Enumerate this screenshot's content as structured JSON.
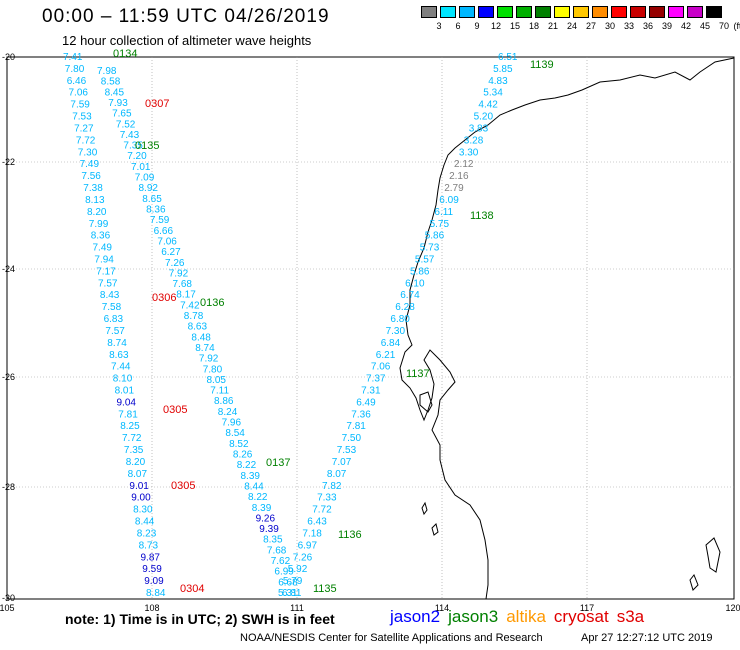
{
  "header": {
    "title": "00:00 – 11:59 UTC 04/26/2019",
    "subtitle": "12 hour collection of altimeter wave heights"
  },
  "colorbar": {
    "labels": [
      "3",
      "6",
      "9",
      "12",
      "15",
      "18",
      "21",
      "24",
      "27",
      "30",
      "33",
      "36",
      "39",
      "42",
      "45",
      "70"
    ],
    "unit": "(ft)",
    "colors": [
      "#7f7f7f",
      "#00e5ff",
      "#00b8ff",
      "#0000ff",
      "#00e000",
      "#00b000",
      "#008000",
      "#ffff00",
      "#ffc800",
      "#ff8c00",
      "#ff0000",
      "#c80000",
      "#960000",
      "#ff00ff",
      "#c800c8",
      "#000000"
    ]
  },
  "axes": {
    "x_ticks": [
      "105",
      "108",
      "111",
      "114",
      "117",
      "120"
    ],
    "y_ticks": [
      "-20",
      "-22",
      "-24",
      "-26",
      "-28",
      "-30"
    ]
  },
  "tracks": [
    {
      "id": "0134",
      "color": "#008000",
      "label_pos": [
        113,
        57
      ],
      "values": []
    },
    {
      "id": "0307",
      "color": "#e00000",
      "label_pos": [
        145,
        107
      ]
    },
    {
      "id": "0135",
      "color": "#008000",
      "label_pos": [
        135,
        149
      ]
    },
    {
      "id": "0306",
      "color": "#e00000",
      "label_pos": [
        152,
        301
      ]
    },
    {
      "id": "0136",
      "color": "#008000",
      "label_pos": [
        200,
        306
      ]
    },
    {
      "id": "0305",
      "color": "#e00000",
      "label_pos": [
        163,
        413
      ]
    },
    {
      "id": "0137",
      "color": "#008000",
      "label_pos": [
        266,
        466
      ]
    },
    {
      "id": "0305b",
      "color": "#e00000",
      "label_pos": [
        171,
        489
      ]
    },
    {
      "id": "1136",
      "color": "#008000",
      "label_pos": [
        338,
        538
      ]
    },
    {
      "id": "0304",
      "color": "#e00000",
      "label_pos": [
        180,
        592
      ]
    },
    {
      "id": "1135",
      "color": "#008000",
      "label_pos": [
        313,
        592
      ]
    },
    {
      "id": "1137",
      "color": "#008000",
      "label_pos": [
        406,
        377
      ]
    },
    {
      "id": "1138",
      "color": "#008000",
      "label_pos": [
        470,
        219
      ]
    },
    {
      "id": "1139",
      "color": "#008000",
      "label_pos": [
        530,
        68
      ]
    }
  ],
  "track_labels": [
    "0134",
    "0307",
    "0135",
    "0306",
    "0136",
    "0305",
    "0137",
    "0305",
    "1136",
    "0304",
    "1135",
    "1137",
    "1138",
    "1139"
  ],
  "col_a": [
    "7.41",
    "7.80",
    "6.46",
    "7.06",
    "7.59",
    "7.53",
    "7.27",
    "7.72",
    "7.30",
    "7.49",
    "7.56",
    "7.38",
    "8.13",
    "8.20",
    "7.99",
    "8.36",
    "7.49",
    "7.94",
    "7.17",
    "7.57",
    "8.43",
    "7.58",
    "6.83",
    "7.57",
    "8.74",
    "8.63",
    "7.44",
    "8.10",
    "8.01",
    "9.04",
    "7.81",
    "8.25",
    "7.72",
    "7.35",
    "8.20",
    "8.07",
    "9.01",
    "9.00",
    "8.30",
    "8.44",
    "8.23",
    "8.73",
    "9.87",
    "9.59",
    "9.09",
    "8.84"
  ],
  "col_b": [
    "7.98",
    "8.58",
    "8.45",
    "7.93",
    "7.65",
    "7.52",
    "7.43",
    "7.35",
    "7.20",
    "7.01",
    "7.09",
    "8.92",
    "8.65",
    "8.36",
    "7.59",
    "6.66",
    "7.06",
    "6.27",
    "7.26",
    "7.92",
    "7.68",
    "8.17",
    "7.42",
    "8.78",
    "8.63",
    "8.48",
    "8.74",
    "7.92",
    "7.80",
    "8.05",
    "7.11",
    "8.86",
    "8.24",
    "7.96",
    "8.54",
    "8.52",
    "8.26",
    "8.22",
    "8.39",
    "8.44",
    "8.22",
    "8.39",
    "9.26",
    "9.39",
    "8.35",
    "7.68",
    "7.62",
    "6.99",
    "6.68",
    "6.81"
  ],
  "col_c": [
    "5.31",
    "5.79",
    "5.92",
    "7.26",
    "6.97",
    "7.18",
    "6.43",
    "7.72",
    "7.33",
    "7.82",
    "8.07",
    "7.07",
    "7.53",
    "7.50",
    "7.81",
    "7.36",
    "6.49",
    "7.31",
    "7.37",
    "7.06",
    "6.21",
    "6.84",
    "7.30",
    "6.80",
    "6.28",
    "6.74",
    "6.10",
    "5.86",
    "5.57",
    "5.73",
    "5.86",
    "5.75",
    "6.11",
    "6.09",
    "2.79",
    "2.16",
    "2.12",
    "3.30",
    "3.28",
    "3.83",
    "5.20",
    "4.42",
    "5.34",
    "4.83",
    "5.85",
    "6.51"
  ],
  "footer": {
    "note": "note: 1) Time is in UTC; 2) SWH is in feet",
    "missions": [
      {
        "name": "jason2",
        "color": "#0000ff"
      },
      {
        "name": "jason3",
        "color": "#008000"
      },
      {
        "name": "altika",
        "color": "#ff9900"
      },
      {
        "name": "cryosat",
        "color": "#e00000"
      },
      {
        "name": "s3a",
        "color": "#e00000"
      }
    ],
    "credit": "NOAA/NESDIS Center for Satellite Applications and Research",
    "timestamp": "Apr 27 12:27:12 UTC 2019"
  }
}
